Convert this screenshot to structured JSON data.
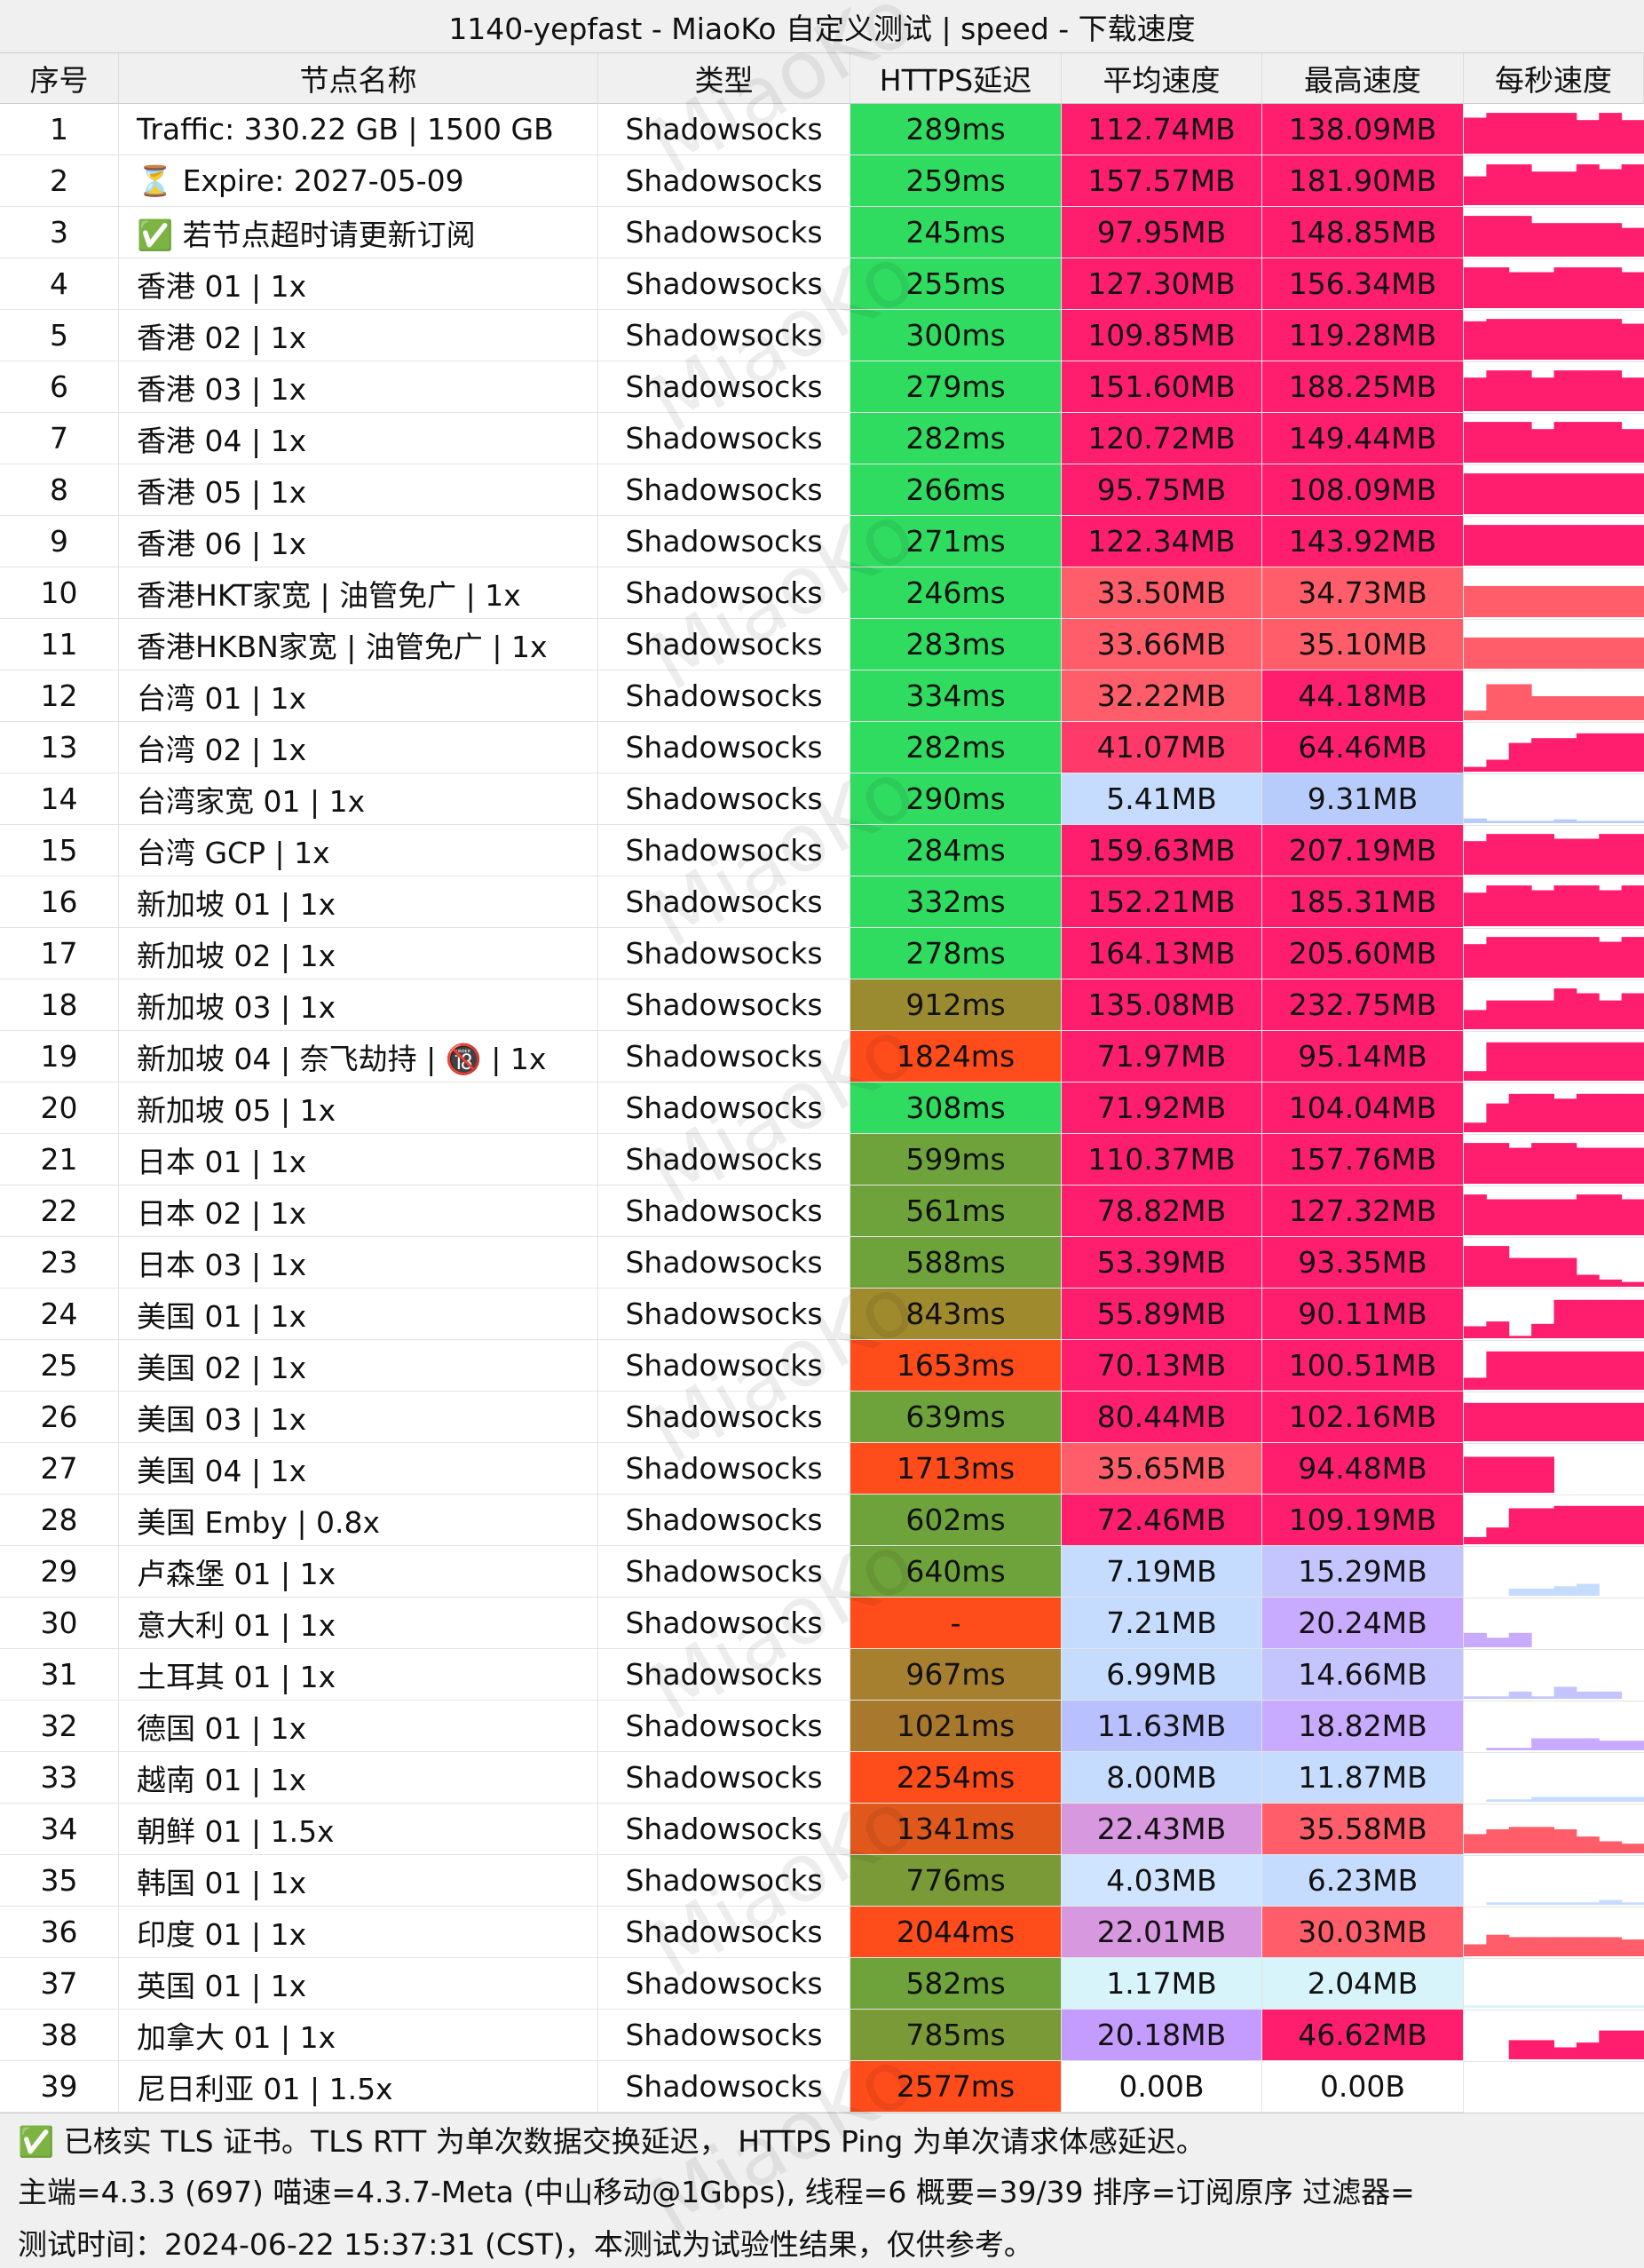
{
  "title": "1140-yepfast - MiaoKo 自定义测试 | speed - 下载速度",
  "watermark": "MiaoKo",
  "table": {
    "header": [
      "序号",
      "节点名称",
      "类型",
      "HTTPS延迟",
      "平均速度",
      "最高速度",
      "每秒速度"
    ],
    "rows": [
      [
        "1",
        "Traffic: 330.22 GB | 1500 GB",
        "Shadowsocks",
        "289ms",
        "112.74MB",
        "138.09MB"
      ],
      [
        "2",
        "⏳ Expire: 2027-05-09",
        "Shadowsocks",
        "259ms",
        "157.57MB",
        "181.90MB"
      ],
      [
        "3",
        "✅ 若节点超时请更新订阅",
        "Shadowsocks",
        "245ms",
        "97.95MB",
        "148.85MB"
      ],
      [
        "4",
        "香港 01 | 1x",
        "Shadowsocks",
        "255ms",
        "127.30MB",
        "156.34MB"
      ],
      [
        "5",
        "香港 02 | 1x",
        "Shadowsocks",
        "300ms",
        "109.85MB",
        "119.28MB"
      ],
      [
        "6",
        "香港 03 | 1x",
        "Shadowsocks",
        "279ms",
        "151.60MB",
        "188.25MB"
      ],
      [
        "7",
        "香港 04 | 1x",
        "Shadowsocks",
        "282ms",
        "120.72MB",
        "149.44MB"
      ],
      [
        "8",
        "香港 05 | 1x",
        "Shadowsocks",
        "266ms",
        "95.75MB",
        "108.09MB"
      ],
      [
        "9",
        "香港 06 | 1x",
        "Shadowsocks",
        "271ms",
        "122.34MB",
        "143.92MB"
      ],
      [
        "10",
        "香港HKT家宽 | 油管免广 | 1x",
        "Shadowsocks",
        "246ms",
        "33.50MB",
        "34.73MB"
      ],
      [
        "11",
        "香港HKBN家宽 | 油管免广 | 1x",
        "Shadowsocks",
        "283ms",
        "33.66MB",
        "35.10MB"
      ],
      [
        "12",
        "台湾 01 | 1x",
        "Shadowsocks",
        "334ms",
        "32.22MB",
        "44.18MB"
      ],
      [
        "13",
        "台湾 02 | 1x",
        "Shadowsocks",
        "282ms",
        "41.07MB",
        "64.46MB"
      ],
      [
        "14",
        "台湾家宽 01 | 1x",
        "Shadowsocks",
        "290ms",
        "5.41MB",
        "9.31MB"
      ],
      [
        "15",
        "台湾 GCP | 1x",
        "Shadowsocks",
        "284ms",
        "159.63MB",
        "207.19MB"
      ],
      [
        "16",
        "新加坡 01 | 1x",
        "Shadowsocks",
        "332ms",
        "152.21MB",
        "185.31MB"
      ],
      [
        "17",
        "新加坡 02 | 1x",
        "Shadowsocks",
        "278ms",
        "164.13MB",
        "205.60MB"
      ],
      [
        "18",
        "新加坡 03 | 1x",
        "Shadowsocks",
        "912ms",
        "135.08MB",
        "232.75MB"
      ],
      [
        "19",
        "新加坡 04 | 奈飞劫持 | 🔞 | 1x",
        "Shadowsocks",
        "1824ms",
        "71.97MB",
        "95.14MB"
      ],
      [
        "20",
        "新加坡 05 | 1x",
        "Shadowsocks",
        "308ms",
        "71.92MB",
        "104.04MB"
      ],
      [
        "21",
        "日本 01 | 1x",
        "Shadowsocks",
        "599ms",
        "110.37MB",
        "157.76MB"
      ],
      [
        "22",
        "日本 02 | 1x",
        "Shadowsocks",
        "561ms",
        "78.82MB",
        "127.32MB"
      ],
      [
        "23",
        "日本 03 | 1x",
        "Shadowsocks",
        "588ms",
        "53.39MB",
        "93.35MB"
      ],
      [
        "24",
        "美国 01 | 1x",
        "Shadowsocks",
        "843ms",
        "55.89MB",
        "90.11MB"
      ],
      [
        "25",
        "美国 02 | 1x",
        "Shadowsocks",
        "1653ms",
        "70.13MB",
        "100.51MB"
      ],
      [
        "26",
        "美国 03 | 1x",
        "Shadowsocks",
        "639ms",
        "80.44MB",
        "102.16MB"
      ],
      [
        "27",
        "美国 04 | 1x",
        "Shadowsocks",
        "1713ms",
        "35.65MB",
        "94.48MB"
      ],
      [
        "28",
        "美国 Emby | 0.8x",
        "Shadowsocks",
        "602ms",
        "72.46MB",
        "109.19MB"
      ],
      [
        "29",
        "卢森堡 01 | 1x",
        "Shadowsocks",
        "640ms",
        "7.19MB",
        "15.29MB"
      ],
      [
        "30",
        "意大利 01 | 1x",
        "Shadowsocks",
        "-",
        "7.21MB",
        "20.24MB"
      ],
      [
        "31",
        "土耳其 01 | 1x",
        "Shadowsocks",
        "967ms",
        "6.99MB",
        "14.66MB"
      ],
      [
        "32",
        "德国 01 | 1x",
        "Shadowsocks",
        "1021ms",
        "11.63MB",
        "18.82MB"
      ],
      [
        "33",
        "越南 01 | 1x",
        "Shadowsocks",
        "2254ms",
        "8.00MB",
        "11.87MB"
      ],
      [
        "34",
        "朝鲜 01 | 1.5x",
        "Shadowsocks",
        "1341ms",
        "22.43MB",
        "35.58MB"
      ],
      [
        "35",
        "韩国 01 | 1x",
        "Shadowsocks",
        "776ms",
        "4.03MB",
        "6.23MB"
      ],
      [
        "36",
        "印度 01 | 1x",
        "Shadowsocks",
        "2044ms",
        "22.01MB",
        "30.03MB"
      ],
      [
        "37",
        "英国 01 | 1x",
        "Shadowsocks",
        "582ms",
        "1.17MB",
        "2.04MB"
      ],
      [
        "38",
        "加拿大 01 | 1x",
        "Shadowsocks",
        "785ms",
        "20.18MB",
        "46.62MB"
      ],
      [
        "39",
        "尼日利亚 01 | 1.5x",
        "Shadowsocks",
        "2577ms",
        "0.00B",
        "0.00B"
      ]
    ]
  },
  "cell_colors": [
    [
      "#2fdc60",
      "#ff1e6e",
      "#ff1e6e"
    ],
    [
      "#2fdc60",
      "#ff1e6e",
      "#ff1e6e"
    ],
    [
      "#2fdc60",
      "#ff1e6e",
      "#ff1e6e"
    ],
    [
      "#2fdc60",
      "#ff1e6e",
      "#ff1e6e"
    ],
    [
      "#2fdc60",
      "#ff1e6e",
      "#ff1e6e"
    ],
    [
      "#2fdc60",
      "#ff1e6e",
      "#ff1e6e"
    ],
    [
      "#2fdc60",
      "#ff1e6e",
      "#ff1e6e"
    ],
    [
      "#2fdc60",
      "#ff1e6e",
      "#ff1e6e"
    ],
    [
      "#2fdc60",
      "#ff1e6e",
      "#ff1e6e"
    ],
    [
      "#2fdc60",
      "#ff5d6a",
      "#ff5d6a"
    ],
    [
      "#2fdc60",
      "#ff5d6a",
      "#ff5d6a"
    ],
    [
      "#2fdc60",
      "#ff5d6a",
      "#ff1e6e"
    ],
    [
      "#2fdc60",
      "#ff3a6a",
      "#ff1e6e"
    ],
    [
      "#2fdc60",
      "#c6dcff",
      "#b8ccfc"
    ],
    [
      "#2fdc60",
      "#ff1e6e",
      "#ff1e6e"
    ],
    [
      "#2fdc60",
      "#ff1e6e",
      "#ff1e6e"
    ],
    [
      "#2fdc60",
      "#ff1e6e",
      "#ff1e6e"
    ],
    [
      "#9a8b30",
      "#ff1e6e",
      "#ff1e6e"
    ],
    [
      "#ff4c1a",
      "#ff1e6e",
      "#ff1e6e"
    ],
    [
      "#2fdc60",
      "#ff1e6e",
      "#ff1e6e"
    ],
    [
      "#6ea23a",
      "#ff1e6e",
      "#ff1e6e"
    ],
    [
      "#6ea23a",
      "#ff1e6e",
      "#ff1e6e"
    ],
    [
      "#6ea23a",
      "#ff1e6e",
      "#ff1e6e"
    ],
    [
      "#a08a2e",
      "#ff1e6e",
      "#ff1e6e"
    ],
    [
      "#ff4c1a",
      "#ff1e6e",
      "#ff1e6e"
    ],
    [
      "#6ea23a",
      "#ff1e6e",
      "#ff1e6e"
    ],
    [
      "#ff4c1a",
      "#ff5d6a",
      "#ff1e6e"
    ],
    [
      "#6ea23a",
      "#ff1e6e",
      "#ff1e6e"
    ],
    [
      "#6ea23a",
      "#c6dcff",
      "#c4c4ff"
    ],
    [
      "#ff4c1a",
      "#c6dcff",
      "#c8aaff"
    ],
    [
      "#a6802e",
      "#c6dcff",
      "#c4c4ff"
    ],
    [
      "#a8782c",
      "#b8c0ff",
      "#c8aaff"
    ],
    [
      "#ff4c1a",
      "#c6dcff",
      "#c6dcff"
    ],
    [
      "#e0581c",
      "#d898e0",
      "#ff5d6a"
    ],
    [
      "#7a9a38",
      "#cfe4ff",
      "#c6dcff"
    ],
    [
      "#ff4c1a",
      "#d898e0",
      "#ff5d6a"
    ],
    [
      "#6ea23a",
      "#d8f4fb",
      "#d8f4fb"
    ],
    [
      "#7a9a38",
      "#c49cff",
      "#ff1e6e"
    ],
    [
      "#ff4c1a",
      "#ffffff",
      "#ffffff"
    ]
  ],
  "bars": [
    {
      "color": "#ff1e6e",
      "heights": [
        75,
        85,
        85,
        85,
        85,
        70,
        85,
        70
      ]
    },
    {
      "color": "#ff1e6e",
      "heights": [
        60,
        85,
        85,
        70,
        70,
        85,
        75,
        85
      ]
    },
    {
      "color": "#ff1e6e",
      "heights": [
        85,
        85,
        85,
        70,
        70,
        70,
        70,
        60
      ]
    },
    {
      "color": "#ff1e6e",
      "heights": [
        85,
        85,
        75,
        75,
        85,
        85,
        85,
        75
      ]
    },
    {
      "color": "#ff1e6e",
      "heights": [
        80,
        85,
        85,
        85,
        85,
        85,
        85,
        75
      ]
    },
    {
      "color": "#ff1e6e",
      "heights": [
        70,
        85,
        85,
        70,
        85,
        85,
        85,
        70
      ]
    },
    {
      "color": "#ff1e6e",
      "heights": [
        85,
        85,
        85,
        70,
        85,
        85,
        85,
        70
      ]
    },
    {
      "color": "#ff1e6e",
      "heights": [
        85,
        85,
        85,
        85,
        85,
        85,
        85,
        85
      ]
    },
    {
      "color": "#ff1e6e",
      "heights": [
        85,
        85,
        85,
        85,
        85,
        85,
        85,
        85
      ]
    },
    {
      "color": "#ff5d6a",
      "heights": [
        65,
        65,
        65,
        65,
        65,
        65,
        65,
        65
      ]
    },
    {
      "color": "#ff5d6a",
      "heights": [
        65,
        65,
        65,
        65,
        65,
        65,
        65,
        65
      ]
    },
    {
      "color": "#ff5d6a",
      "heights": [
        20,
        75,
        75,
        50,
        50,
        50,
        50,
        50
      ]
    },
    {
      "color": "#ff1e6e",
      "heights": [
        10,
        25,
        60,
        70,
        70,
        80,
        80,
        80
      ]
    },
    {
      "color": "#b8ccfc",
      "heights": [
        10,
        5,
        5,
        5,
        8,
        5,
        5,
        5
      ]
    },
    {
      "color": "#ff1e6e",
      "heights": [
        70,
        85,
        85,
        85,
        75,
        75,
        85,
        85
      ]
    },
    {
      "color": "#ff1e6e",
      "heights": [
        70,
        85,
        85,
        75,
        85,
        85,
        75,
        85
      ]
    },
    {
      "color": "#ff1e6e",
      "heights": [
        70,
        85,
        85,
        85,
        85,
        85,
        75,
        85
      ]
    },
    {
      "color": "#ff1e6e",
      "heights": [
        40,
        60,
        60,
        60,
        85,
        75,
        60,
        75
      ]
    },
    {
      "color": "#ff1e6e",
      "heights": [
        20,
        80,
        80,
        80,
        80,
        80,
        80,
        80
      ]
    },
    {
      "color": "#ff1e6e",
      "heights": [
        20,
        60,
        80,
        80,
        70,
        80,
        80,
        80
      ]
    },
    {
      "color": "#ff1e6e",
      "heights": [
        85,
        85,
        75,
        85,
        85,
        75,
        75,
        75
      ]
    },
    {
      "color": "#ff1e6e",
      "heights": [
        85,
        75,
        75,
        75,
        75,
        85,
        85,
        75
      ]
    },
    {
      "color": "#ff1e6e",
      "heights": [
        85,
        85,
        60,
        60,
        60,
        25,
        15,
        10
      ]
    },
    {
      "color": "#ff1e6e",
      "heights": [
        25,
        35,
        5,
        30,
        80,
        80,
        80,
        80
      ]
    },
    {
      "color": "#ff1e6e",
      "heights": [
        25,
        80,
        80,
        80,
        80,
        80,
        80,
        80
      ]
    },
    {
      "color": "#ff1e6e",
      "heights": [
        80,
        80,
        80,
        80,
        80,
        80,
        80,
        80
      ]
    },
    {
      "color": "#ff1e6e",
      "heights": [
        75,
        75,
        75,
        75,
        0,
        0,
        0,
        0
      ]
    },
    {
      "color": "#ff1e6e",
      "heights": [
        15,
        35,
        75,
        75,
        80,
        80,
        80,
        80
      ]
    },
    {
      "color": "#c6dcff",
      "heights": [
        0,
        0,
        15,
        15,
        20,
        25,
        0,
        0
      ]
    },
    {
      "color": "#c8aaff",
      "heights": [
        30,
        20,
        30,
        0,
        0,
        0,
        0,
        0
      ]
    },
    {
      "color": "#c4c4ff",
      "heights": [
        5,
        5,
        15,
        5,
        25,
        15,
        15,
        0
      ]
    },
    {
      "color": "#c8aaff",
      "heights": [
        0,
        5,
        5,
        25,
        25,
        25,
        20,
        20
      ]
    },
    {
      "color": "#c6dcff",
      "heights": [
        0,
        5,
        5,
        10,
        10,
        10,
        10,
        10
      ]
    },
    {
      "color": "#ff5d6a",
      "heights": [
        40,
        50,
        55,
        55,
        50,
        35,
        25,
        20
      ]
    },
    {
      "color": "#c6dcff",
      "heights": [
        0,
        5,
        5,
        5,
        5,
        5,
        10,
        5
      ]
    },
    {
      "color": "#ff5d6a",
      "heights": [
        25,
        45,
        40,
        40,
        40,
        40,
        40,
        35
      ]
    },
    {
      "color": "#d8f4fb",
      "heights": [
        5,
        5,
        5,
        5,
        5,
        5,
        5,
        5
      ]
    },
    {
      "color": "#ff1e6e",
      "heights": [
        0,
        0,
        40,
        40,
        25,
        35,
        60,
        60
      ]
    },
    {
      "color": "#ffffff",
      "heights": []
    }
  ],
  "footer": [
    "✅ 已核实 TLS 证书。TLS RTT 为单次数据交换延迟， HTTPS Ping 为单次请求体感延迟。",
    "主端=4.3.3 (697) 喵速=4.3.7-Meta (中山移动@1Gbps), 线程=6 概要=39/39 排序=订阅原序 过滤器=",
    "测试时间：2024-06-22 15:37:31 (CST)，本测试为试验性结果，仅供参考。"
  ]
}
